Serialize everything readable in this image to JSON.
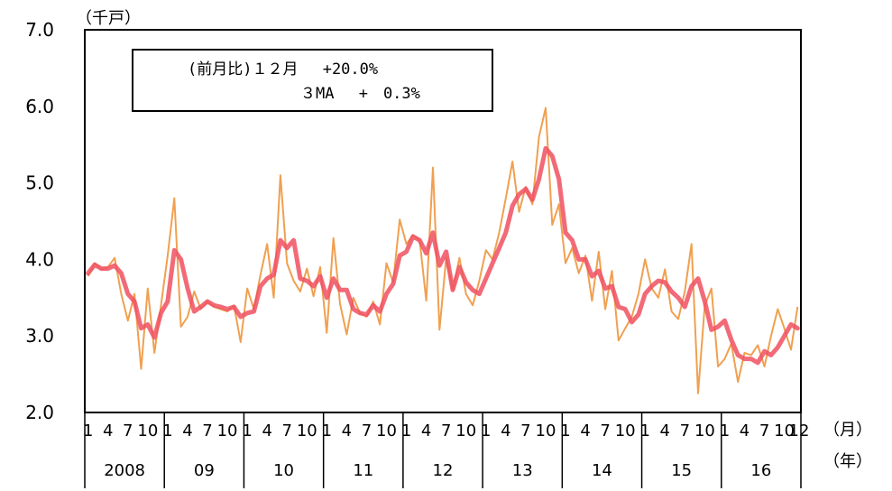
{
  "chart_data": {
    "type": "line",
    "title": "",
    "y_unit_label": "（千戸）",
    "month_unit_label": "（月）",
    "year_unit_label": "（年）",
    "ylim": [
      2.0,
      7.0
    ],
    "y_ticks": [
      "2.0",
      "3.0",
      "4.0",
      "5.0",
      "6.0",
      "7.0"
    ],
    "month_tick_labels": [
      "1",
      "4",
      "7",
      "10"
    ],
    "last_month_label": "12",
    "years": [
      "2008",
      "09",
      "10",
      "11",
      "12",
      "13",
      "14",
      "15",
      "16"
    ],
    "legend": {
      "line1": "(前月比)１２月　 +20.0%",
      "line2": "３MA　 +　0.3%"
    },
    "series": [
      {
        "color": "#f0a050",
        "values": [
          3.78,
          3.95,
          3.87,
          3.9,
          4.02,
          3.55,
          3.2,
          3.55,
          2.57,
          3.62,
          2.78,
          3.4,
          4.05,
          4.8,
          3.12,
          3.25,
          3.58,
          3.35,
          3.45,
          3.38,
          3.35,
          3.32,
          3.4,
          2.92,
          3.62,
          3.35,
          3.8,
          4.2,
          3.5,
          5.1,
          3.95,
          3.72,
          3.58,
          3.88,
          3.52,
          3.9,
          3.04,
          4.28,
          3.42,
          3.02,
          3.5,
          3.3,
          3.25,
          3.45,
          3.15,
          3.95,
          3.7,
          4.52,
          4.2,
          4.32,
          4.25,
          3.46,
          5.2,
          3.08,
          4.02,
          3.6,
          4.02,
          3.55,
          3.4,
          3.72,
          4.12,
          4.0,
          4.35,
          4.8,
          5.28,
          4.62,
          4.95,
          4.72,
          5.6,
          5.98,
          4.45,
          4.72,
          3.95,
          4.15,
          3.82,
          4.05,
          3.46,
          4.1,
          3.35,
          3.85,
          2.94,
          3.1,
          3.25,
          3.55,
          4.0,
          3.62,
          3.5,
          3.87,
          3.32,
          3.22,
          3.58,
          4.2,
          2.25,
          3.4,
          3.62,
          2.6,
          2.7,
          2.9,
          2.4,
          2.78,
          2.75,
          2.88,
          2.6,
          3.0,
          3.35,
          3.1,
          2.82,
          3.38
        ]
      },
      {
        "color": "#f05060",
        "values": [
          3.82,
          3.93,
          3.88,
          3.88,
          3.92,
          3.82,
          3.55,
          3.45,
          3.1,
          3.15,
          2.98,
          3.3,
          3.45,
          4.12,
          4.0,
          3.62,
          3.32,
          3.38,
          3.45,
          3.4,
          3.38,
          3.35,
          3.38,
          3.25,
          3.3,
          3.32,
          3.65,
          3.75,
          3.8,
          4.25,
          4.15,
          4.25,
          3.75,
          3.72,
          3.65,
          3.78,
          3.5,
          3.75,
          3.6,
          3.6,
          3.35,
          3.3,
          3.28,
          3.4,
          3.32,
          3.55,
          3.68,
          4.05,
          4.1,
          4.3,
          4.25,
          4.08,
          4.35,
          3.92,
          4.1,
          3.6,
          3.9,
          3.7,
          3.6,
          3.55,
          3.75,
          3.95,
          4.15,
          4.35,
          4.7,
          4.85,
          4.92,
          4.78,
          5.05,
          5.45,
          5.35,
          5.05,
          4.35,
          4.25,
          4.0,
          4.0,
          3.78,
          3.85,
          3.62,
          3.65,
          3.38,
          3.35,
          3.18,
          3.28,
          3.55,
          3.65,
          3.72,
          3.7,
          3.58,
          3.5,
          3.38,
          3.65,
          3.75,
          3.45,
          3.08,
          3.12,
          3.2,
          2.95,
          2.75,
          2.7,
          2.7,
          2.65,
          2.8,
          2.75,
          2.85,
          3.0,
          3.15,
          3.1
        ]
      }
    ]
  }
}
